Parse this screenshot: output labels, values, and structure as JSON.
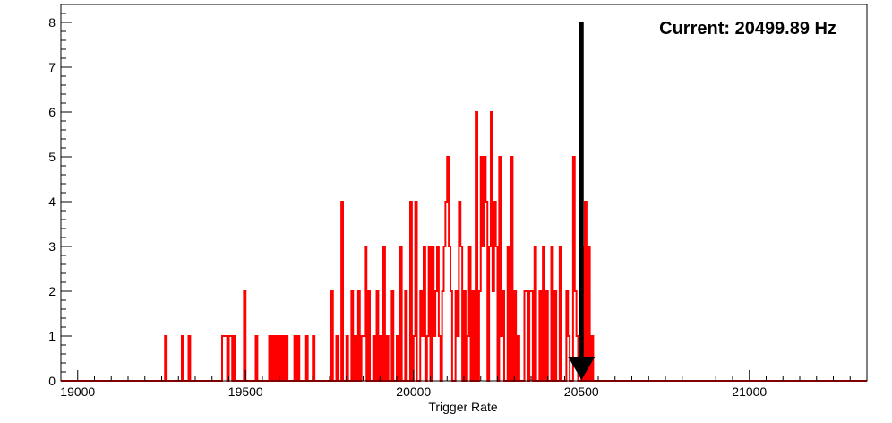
{
  "chart_data": {
    "type": "bar",
    "title": "",
    "xlabel": "Trigger Rate",
    "ylabel": "",
    "xlim": [
      18950,
      21350
    ],
    "ylim": [
      0,
      8.4
    ],
    "x_ticks": [
      19000,
      19500,
      20000,
      20500,
      21000
    ],
    "y_ticks": [
      0,
      1,
      2,
      3,
      4,
      5,
      6,
      7,
      8
    ],
    "grid": false,
    "legend": "none",
    "series": [
      {
        "color": "#ff0000",
        "bin_width": 5,
        "bins": [
          [
            19260,
            1
          ],
          [
            19310,
            1
          ],
          [
            19330,
            1
          ],
          [
            19430,
            1
          ],
          [
            19435,
            1
          ],
          [
            19440,
            1
          ],
          [
            19450,
            1
          ],
          [
            19455,
            1
          ],
          [
            19465,
            1
          ],
          [
            19495,
            2
          ],
          [
            19530,
            1
          ],
          [
            19570,
            1
          ],
          [
            19580,
            1
          ],
          [
            19590,
            1
          ],
          [
            19600,
            1
          ],
          [
            19610,
            1
          ],
          [
            19620,
            1
          ],
          [
            19645,
            1
          ],
          [
            19655,
            1
          ],
          [
            19680,
            1
          ],
          [
            19700,
            1
          ],
          [
            19755,
            2
          ],
          [
            19770,
            1
          ],
          [
            19785,
            4
          ],
          [
            19800,
            1
          ],
          [
            19815,
            2
          ],
          [
            19825,
            1
          ],
          [
            19835,
            2
          ],
          [
            19845,
            1
          ],
          [
            19850,
            1
          ],
          [
            19855,
            3
          ],
          [
            19865,
            2
          ],
          [
            19880,
            1
          ],
          [
            19890,
            2
          ],
          [
            19900,
            1
          ],
          [
            19910,
            3
          ],
          [
            19920,
            1
          ],
          [
            19935,
            2
          ],
          [
            19950,
            1
          ],
          [
            19960,
            3
          ],
          [
            19975,
            2
          ],
          [
            19990,
            4
          ],
          [
            20000,
            1
          ],
          [
            20005,
            4
          ],
          [
            20020,
            2
          ],
          [
            20025,
            1
          ],
          [
            20030,
            3
          ],
          [
            20040,
            1
          ],
          [
            20045,
            3
          ],
          [
            20055,
            3
          ],
          [
            20060,
            1
          ],
          [
            20065,
            2
          ],
          [
            20070,
            3
          ],
          [
            20075,
            1
          ],
          [
            20085,
            2
          ],
          [
            20090,
            3
          ],
          [
            20095,
            4
          ],
          [
            20100,
            5
          ],
          [
            20105,
            3
          ],
          [
            20110,
            2
          ],
          [
            20125,
            2
          ],
          [
            20130,
            1
          ],
          [
            20135,
            4
          ],
          [
            20140,
            3
          ],
          [
            20150,
            2
          ],
          [
            20160,
            1
          ],
          [
            20165,
            3
          ],
          [
            20175,
            2
          ],
          [
            20185,
            6
          ],
          [
            20195,
            2
          ],
          [
            20200,
            5
          ],
          [
            20205,
            3
          ],
          [
            20210,
            5
          ],
          [
            20215,
            4
          ],
          [
            20225,
            3
          ],
          [
            20230,
            6
          ],
          [
            20235,
            2
          ],
          [
            20240,
            4
          ],
          [
            20245,
            3
          ],
          [
            20255,
            5
          ],
          [
            20260,
            1
          ],
          [
            20265,
            2
          ],
          [
            20280,
            3
          ],
          [
            20290,
            5
          ],
          [
            20300,
            2
          ],
          [
            20310,
            1
          ],
          [
            20330,
            2
          ],
          [
            20335,
            2
          ],
          [
            20345,
            2
          ],
          [
            20350,
            2
          ],
          [
            20360,
            3
          ],
          [
            20375,
            2
          ],
          [
            20385,
            3
          ],
          [
            20395,
            2
          ],
          [
            20410,
            3
          ],
          [
            20420,
            2
          ],
          [
            20435,
            3
          ],
          [
            20455,
            2
          ],
          [
            20460,
            1
          ],
          [
            20475,
            5
          ],
          [
            20480,
            2
          ],
          [
            20485,
            1
          ],
          [
            20500,
            3
          ],
          [
            20510,
            4
          ],
          [
            20520,
            3
          ],
          [
            20530,
            1
          ]
        ]
      }
    ],
    "marker": {
      "x": 20500,
      "y_top": 8
    },
    "annotation": "Current: 20499.89 Hz"
  }
}
